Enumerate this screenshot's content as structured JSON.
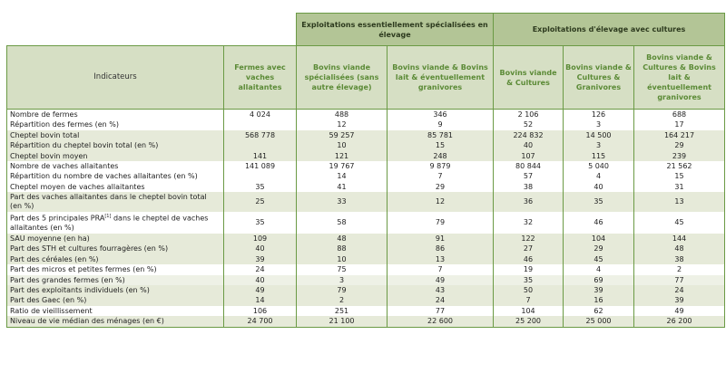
{
  "table": {
    "group_headers": [
      "Exploitations essentiellement spécialisées en élevage",
      "Exploitations d'élevage avec cultures"
    ],
    "columns": [
      "Indicateurs",
      "Fermes avec vaches allaitantes",
      "Bovins viande spécialisées (sans autre élevage)",
      "Bovins viande & Bovins lait & éventuellement granivores",
      "Bovins viande & Cultures",
      "Bovins viande & Cultures & Granivores",
      "Bovins viande & Cultures & Bovins lait & éventuellement granivores"
    ],
    "rows": [
      {
        "label": "Nombre de fermes",
        "values": [
          "4 024",
          "488",
          "346",
          "2 106",
          "126",
          "688"
        ]
      },
      {
        "label": "Répartition des fermes (en %)",
        "values": [
          "",
          "12",
          "9",
          "52",
          "3",
          "17"
        ]
      },
      {
        "label": "Cheptel bovin total",
        "values": [
          "568 778",
          "59 257",
          "85 781",
          "224 832",
          "14 500",
          "164 217"
        ]
      },
      {
        "label": "Répartition du cheptel bovin total (en %)",
        "values": [
          "",
          "10",
          "15",
          "40",
          "3",
          "29"
        ]
      },
      {
        "label": "Cheptel bovin moyen",
        "values": [
          "141",
          "121",
          "248",
          "107",
          "115",
          "239"
        ]
      },
      {
        "label": "Nombre de vaches allaitantes",
        "values": [
          "141 089",
          "19 767",
          "9 879",
          "80 844",
          "5 040",
          "21 562"
        ]
      },
      {
        "label": "Répartition du nombre de vaches allaitantes (en %)",
        "values": [
          "",
          "14",
          "7",
          "57",
          "4",
          "15"
        ]
      },
      {
        "label": "Cheptel moyen de vaches allaitantes",
        "values": [
          "35",
          "41",
          "29",
          "38",
          "40",
          "31"
        ]
      },
      {
        "label": "Part des vaches allaitantes dans le cheptel bovin total (en %)",
        "values": [
          "25",
          "33",
          "12",
          "36",
          "35",
          "13"
        ]
      },
      {
        "label_pre": "Part des 5 principales PRA",
        "label_sup": "[1]",
        "label_post": " dans le cheptel de vaches allaitantes (en %)",
        "values": [
          "35",
          "58",
          "79",
          "32",
          "46",
          "45"
        ]
      },
      {
        "label": "SAU moyenne (en ha)",
        "values": [
          "109",
          "48",
          "91",
          "122",
          "104",
          "144"
        ]
      },
      {
        "label": "Part des STH et cultures fourragères (en %)",
        "values": [
          "40",
          "88",
          "86",
          "27",
          "29",
          "48"
        ]
      },
      {
        "label": "Part des céréales (en %)",
        "values": [
          "39",
          "10",
          "13",
          "46",
          "45",
          "38"
        ]
      },
      {
        "label": "Part des micros et petites fermes (en %)",
        "values": [
          "24",
          "75",
          "7",
          "19",
          "4",
          "2"
        ]
      },
      {
        "label": "Part des grandes fermes (en %)",
        "values": [
          "40",
          "3",
          "49",
          "35",
          "69",
          "77"
        ]
      },
      {
        "label": "Part des exploitants individuels (en %)",
        "values": [
          "49",
          "79",
          "43",
          "50",
          "39",
          "24"
        ]
      },
      {
        "label": "Part des Gaec (en %)",
        "values": [
          "14",
          "2",
          "24",
          "7",
          "16",
          "39"
        ]
      },
      {
        "label": "Ratio de vieillissement",
        "values": [
          "106",
          "251",
          "77",
          "104",
          "62",
          "49"
        ]
      },
      {
        "label": "Niveau de vie médian des ménages (en €)",
        "values": [
          "24 700",
          "21 100",
          "22 600",
          "25 200",
          "25 000",
          "26 200"
        ]
      }
    ]
  },
  "colors": {
    "border": "#6b9a45",
    "group_header_bg": "#b3c596",
    "header_bg": "#d6dfc4",
    "header_text": "#5b8a36",
    "row_shade": "#e6ead9"
  }
}
